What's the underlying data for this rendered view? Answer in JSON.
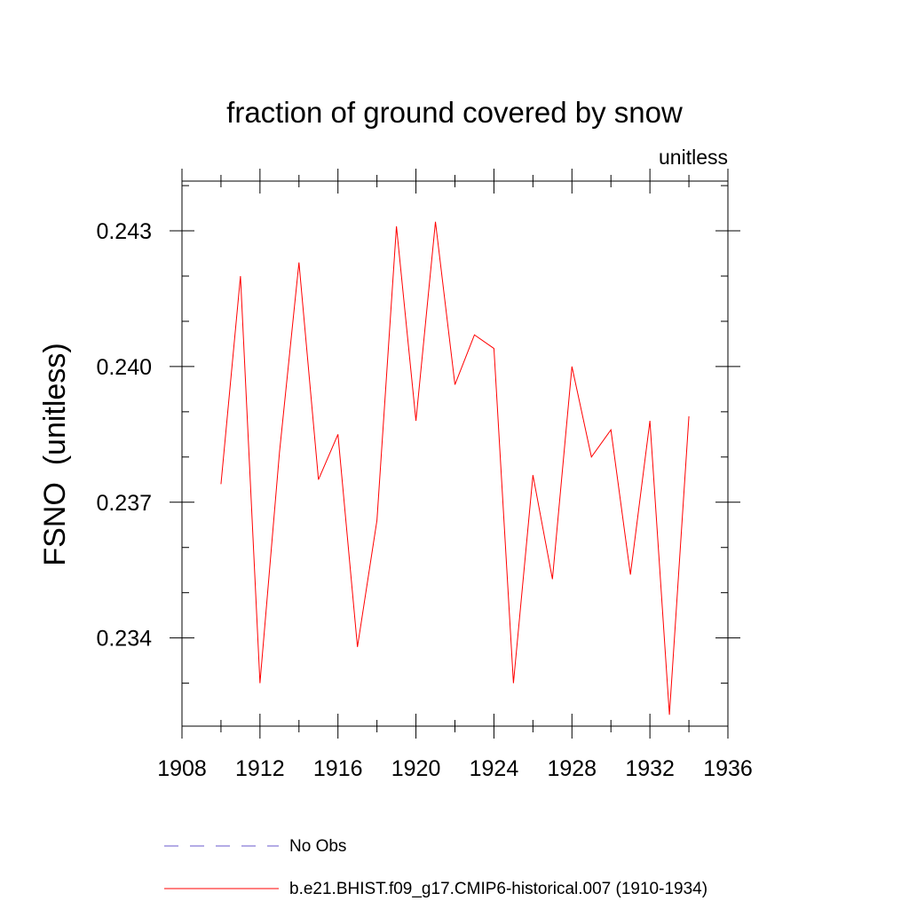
{
  "chart_data": {
    "type": "line",
    "title": "fraction of ground covered by snow",
    "units_label": "unitless",
    "ylabel": "FSNO  (unitless)",
    "xlabel": "",
    "xlim": [
      1908,
      1936
    ],
    "ylim": [
      0.23205,
      0.2441
    ],
    "x_ticks": [
      1908,
      1912,
      1916,
      1920,
      1924,
      1928,
      1932,
      1936
    ],
    "x_tick_labels": [
      "1908",
      "1912",
      "1916",
      "1920",
      "1924",
      "1928",
      "1932",
      "1936"
    ],
    "x_minor_step": 2,
    "y_ticks": [
      0.234,
      0.237,
      0.24,
      0.243
    ],
    "y_tick_labels": [
      "0.234",
      "0.237",
      "0.240",
      "0.243"
    ],
    "y_minor_step": 0.001,
    "grid": false,
    "series": [
      {
        "name": "b.e21.BHIST.f09_g17.CMIP6-historical.007 (1910-1934)",
        "color": "#ff0000",
        "dash": "solid",
        "x": [
          1910,
          1911,
          1912,
          1913,
          1914,
          1915,
          1916,
          1917,
          1918,
          1919,
          1920,
          1921,
          1922,
          1923,
          1924,
          1925,
          1926,
          1927,
          1928,
          1929,
          1930,
          1931,
          1932,
          1933,
          1934
        ],
        "values": [
          0.2374,
          0.242,
          0.233,
          0.2381,
          0.2423,
          0.2375,
          0.2385,
          0.2338,
          0.2366,
          0.2431,
          0.2388,
          0.2432,
          0.2396,
          0.2407,
          0.2404,
          0.233,
          0.2376,
          0.2353,
          0.24,
          0.238,
          0.2386,
          0.2354,
          0.2388,
          0.2323,
          0.2389
        ]
      }
    ],
    "legend": [
      {
        "label": "No Obs",
        "color": "#6a5acd",
        "dash": "dashed"
      },
      {
        "label": "b.e21.BHIST.f09_g17.CMIP6-historical.007 (1910-1934)",
        "color": "#ff0000",
        "dash": "solid"
      }
    ]
  }
}
